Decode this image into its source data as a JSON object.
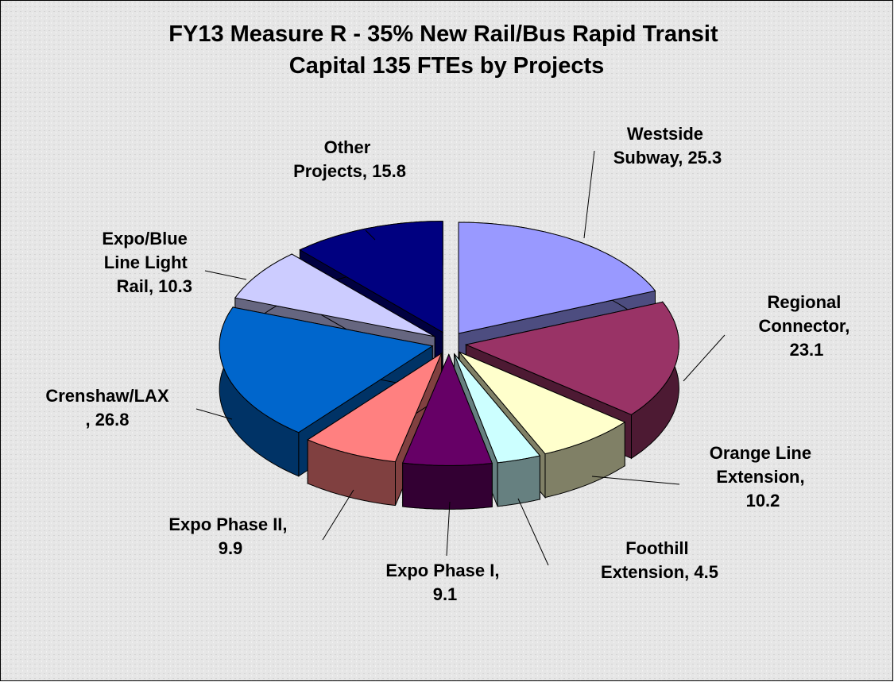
{
  "chart_data": {
    "type": "pie",
    "title": "FY13 Measure R - 35% New Rail/Bus Rapid Transit Capital 135 FTEs by Projects",
    "values": [
      25.3,
      23.1,
      10.2,
      4.5,
      9.1,
      9.9,
      26.8,
      10.3,
      15.8
    ],
    "value_labels": [
      "Westside Subway, 25.3",
      "Regional Connector, 23.1",
      "Orange Line Extension, 10.2",
      "Foothill Extension, 4.5",
      "Expo Phase I, 9.1",
      "Expo Phase II, 9.9",
      "Crenshaw/LAX, 26.8",
      "Expo/Blue Line Light Rail, 10.3",
      "Other Projects, 15.8"
    ],
    "colors": [
      "#9999ff",
      "#993366",
      "#ffffcc",
      "#ccffff",
      "#660066",
      "#ff8080",
      "#0066cc",
      "#ccccff",
      "#000080"
    ]
  }
}
